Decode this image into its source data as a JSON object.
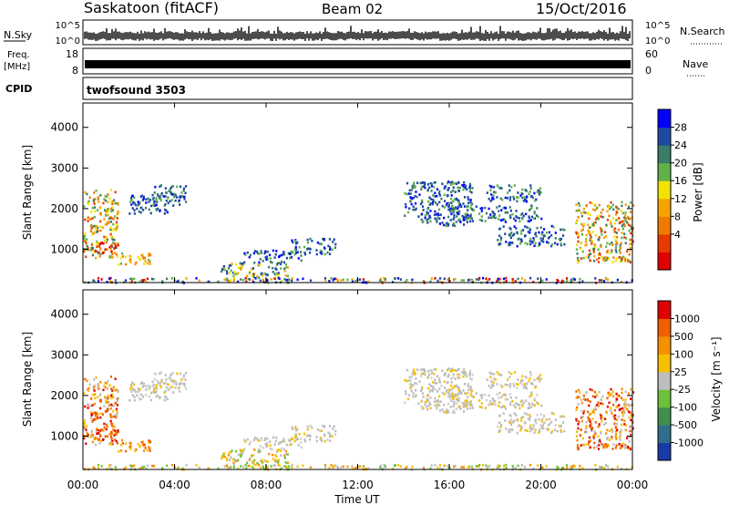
{
  "header": {
    "station": "Saskatoon (fitACF)",
    "beam": "Beam 02",
    "date": "15/Oct/2016"
  },
  "summary_panels": {
    "nsky_label": "N.Sky",
    "nsky_ticks": [
      "10^5",
      "10^0"
    ],
    "nsearch_label": "N.Search",
    "nsearch_ticks": [
      "10^5",
      "10^0"
    ],
    "freq_label_line1": "Freq.",
    "freq_label_line2": "[MHz]",
    "freq_ticks": [
      "18",
      "8"
    ],
    "nave_label": "Nave",
    "nave_ticks": [
      "60",
      "0"
    ],
    "cpid_label": "CPID",
    "cpid_value": "twofsound 3503"
  },
  "chart_data": [
    {
      "type": "heatmap",
      "name": "power",
      "ylabel": "Slant Range [km]",
      "ylim": [
        180,
        4600
      ],
      "yticks": [
        "1000",
        "2000",
        "3000",
        "4000"
      ],
      "xlim": [
        0,
        24
      ],
      "colorbar_label": "Power [dB]",
      "colorbar_ticks": [
        "4",
        "8",
        "12",
        "16",
        "20",
        "24",
        "28"
      ],
      "colorbar_colors": [
        "#0000ff",
        "#1d4aa0",
        "#3a7d68",
        "#5fb24a",
        "#f2e300",
        "#f5a400",
        "#f07a00",
        "#e83a00",
        "#e00000"
      ]
    },
    {
      "type": "heatmap",
      "name": "velocity",
      "ylabel": "Slant Range [km]",
      "ylim": [
        180,
        4600
      ],
      "yticks": [
        "1000",
        "2000",
        "3000",
        "4000"
      ],
      "xlim": [
        0,
        24
      ],
      "xlabel": "Time UT",
      "xticks": [
        "00:00",
        "04:00",
        "08:00",
        "12:00",
        "16:00",
        "20:00",
        "00:00"
      ],
      "colorbar_label": "Velocity [m s⁻¹]",
      "colorbar_ticks": [
        "1000",
        "500",
        "100",
        "25",
        "-25",
        "-100",
        "-500",
        "-1000"
      ],
      "colorbar_colors": [
        "#1a3aa8",
        "#2f6e8c",
        "#3f8f4a",
        "#6cc23a",
        "#bdbdbd",
        "#f5c000",
        "#f59000",
        "#f06000",
        "#e00000"
      ]
    }
  ]
}
